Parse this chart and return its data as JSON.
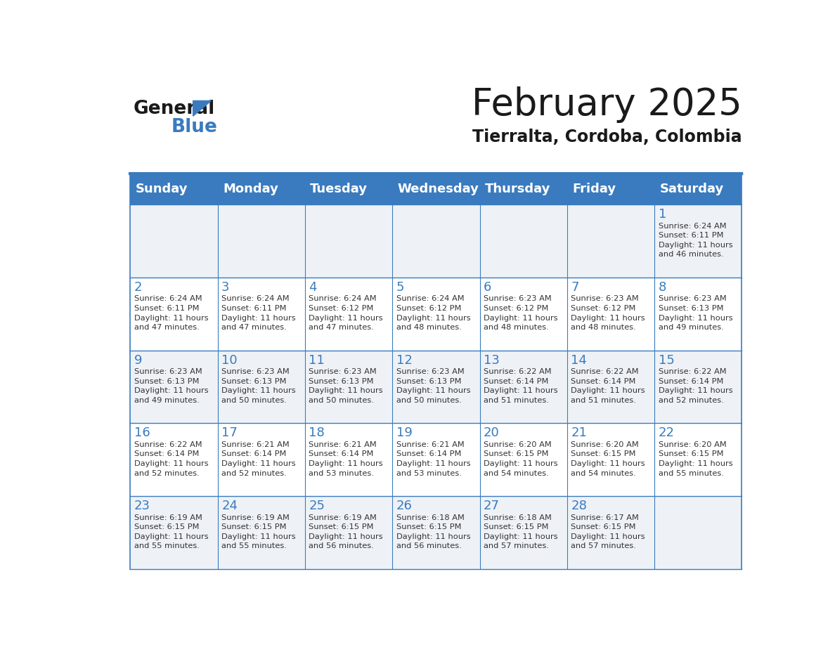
{
  "title": "February 2025",
  "subtitle": "Tierralta, Cordoba, Colombia",
  "header_bg": "#3a7bbf",
  "header_text_color": "#ffffff",
  "cell_bg_even": "#eef2f7",
  "cell_bg_odd": "#ffffff",
  "day_headers": [
    "Sunday",
    "Monday",
    "Tuesday",
    "Wednesday",
    "Thursday",
    "Friday",
    "Saturday"
  ],
  "title_color": "#1a1a1a",
  "subtitle_color": "#1a1a1a",
  "line_color": "#3a7bbf",
  "day_number_color": "#3a7bbf",
  "text_color": "#333333",
  "calendar": [
    [
      null,
      null,
      null,
      null,
      null,
      null,
      {
        "day": 1,
        "sunrise": "6:24 AM",
        "sunset": "6:11 PM",
        "daylight": "11 hours\nand 46 minutes."
      }
    ],
    [
      {
        "day": 2,
        "sunrise": "6:24 AM",
        "sunset": "6:11 PM",
        "daylight": "11 hours\nand 47 minutes."
      },
      {
        "day": 3,
        "sunrise": "6:24 AM",
        "sunset": "6:11 PM",
        "daylight": "11 hours\nand 47 minutes."
      },
      {
        "day": 4,
        "sunrise": "6:24 AM",
        "sunset": "6:12 PM",
        "daylight": "11 hours\nand 47 minutes."
      },
      {
        "day": 5,
        "sunrise": "6:24 AM",
        "sunset": "6:12 PM",
        "daylight": "11 hours\nand 48 minutes."
      },
      {
        "day": 6,
        "sunrise": "6:23 AM",
        "sunset": "6:12 PM",
        "daylight": "11 hours\nand 48 minutes."
      },
      {
        "day": 7,
        "sunrise": "6:23 AM",
        "sunset": "6:12 PM",
        "daylight": "11 hours\nand 48 minutes."
      },
      {
        "day": 8,
        "sunrise": "6:23 AM",
        "sunset": "6:13 PM",
        "daylight": "11 hours\nand 49 minutes."
      }
    ],
    [
      {
        "day": 9,
        "sunrise": "6:23 AM",
        "sunset": "6:13 PM",
        "daylight": "11 hours\nand 49 minutes."
      },
      {
        "day": 10,
        "sunrise": "6:23 AM",
        "sunset": "6:13 PM",
        "daylight": "11 hours\nand 50 minutes."
      },
      {
        "day": 11,
        "sunrise": "6:23 AM",
        "sunset": "6:13 PM",
        "daylight": "11 hours\nand 50 minutes."
      },
      {
        "day": 12,
        "sunrise": "6:23 AM",
        "sunset": "6:13 PM",
        "daylight": "11 hours\nand 50 minutes."
      },
      {
        "day": 13,
        "sunrise": "6:22 AM",
        "sunset": "6:14 PM",
        "daylight": "11 hours\nand 51 minutes."
      },
      {
        "day": 14,
        "sunrise": "6:22 AM",
        "sunset": "6:14 PM",
        "daylight": "11 hours\nand 51 minutes."
      },
      {
        "day": 15,
        "sunrise": "6:22 AM",
        "sunset": "6:14 PM",
        "daylight": "11 hours\nand 52 minutes."
      }
    ],
    [
      {
        "day": 16,
        "sunrise": "6:22 AM",
        "sunset": "6:14 PM",
        "daylight": "11 hours\nand 52 minutes."
      },
      {
        "day": 17,
        "sunrise": "6:21 AM",
        "sunset": "6:14 PM",
        "daylight": "11 hours\nand 52 minutes."
      },
      {
        "day": 18,
        "sunrise": "6:21 AM",
        "sunset": "6:14 PM",
        "daylight": "11 hours\nand 53 minutes."
      },
      {
        "day": 19,
        "sunrise": "6:21 AM",
        "sunset": "6:14 PM",
        "daylight": "11 hours\nand 53 minutes."
      },
      {
        "day": 20,
        "sunrise": "6:20 AM",
        "sunset": "6:15 PM",
        "daylight": "11 hours\nand 54 minutes."
      },
      {
        "day": 21,
        "sunrise": "6:20 AM",
        "sunset": "6:15 PM",
        "daylight": "11 hours\nand 54 minutes."
      },
      {
        "day": 22,
        "sunrise": "6:20 AM",
        "sunset": "6:15 PM",
        "daylight": "11 hours\nand 55 minutes."
      }
    ],
    [
      {
        "day": 23,
        "sunrise": "6:19 AM",
        "sunset": "6:15 PM",
        "daylight": "11 hours\nand 55 minutes."
      },
      {
        "day": 24,
        "sunrise": "6:19 AM",
        "sunset": "6:15 PM",
        "daylight": "11 hours\nand 55 minutes."
      },
      {
        "day": 25,
        "sunrise": "6:19 AM",
        "sunset": "6:15 PM",
        "daylight": "11 hours\nand 56 minutes."
      },
      {
        "day": 26,
        "sunrise": "6:18 AM",
        "sunset": "6:15 PM",
        "daylight": "11 hours\nand 56 minutes."
      },
      {
        "day": 27,
        "sunrise": "6:18 AM",
        "sunset": "6:15 PM",
        "daylight": "11 hours\nand 57 minutes."
      },
      {
        "day": 28,
        "sunrise": "6:17 AM",
        "sunset": "6:15 PM",
        "daylight": "11 hours\nand 57 minutes."
      },
      null
    ]
  ],
  "logo_general_color": "#1a1a1a",
  "logo_blue_color": "#3a7bbf"
}
